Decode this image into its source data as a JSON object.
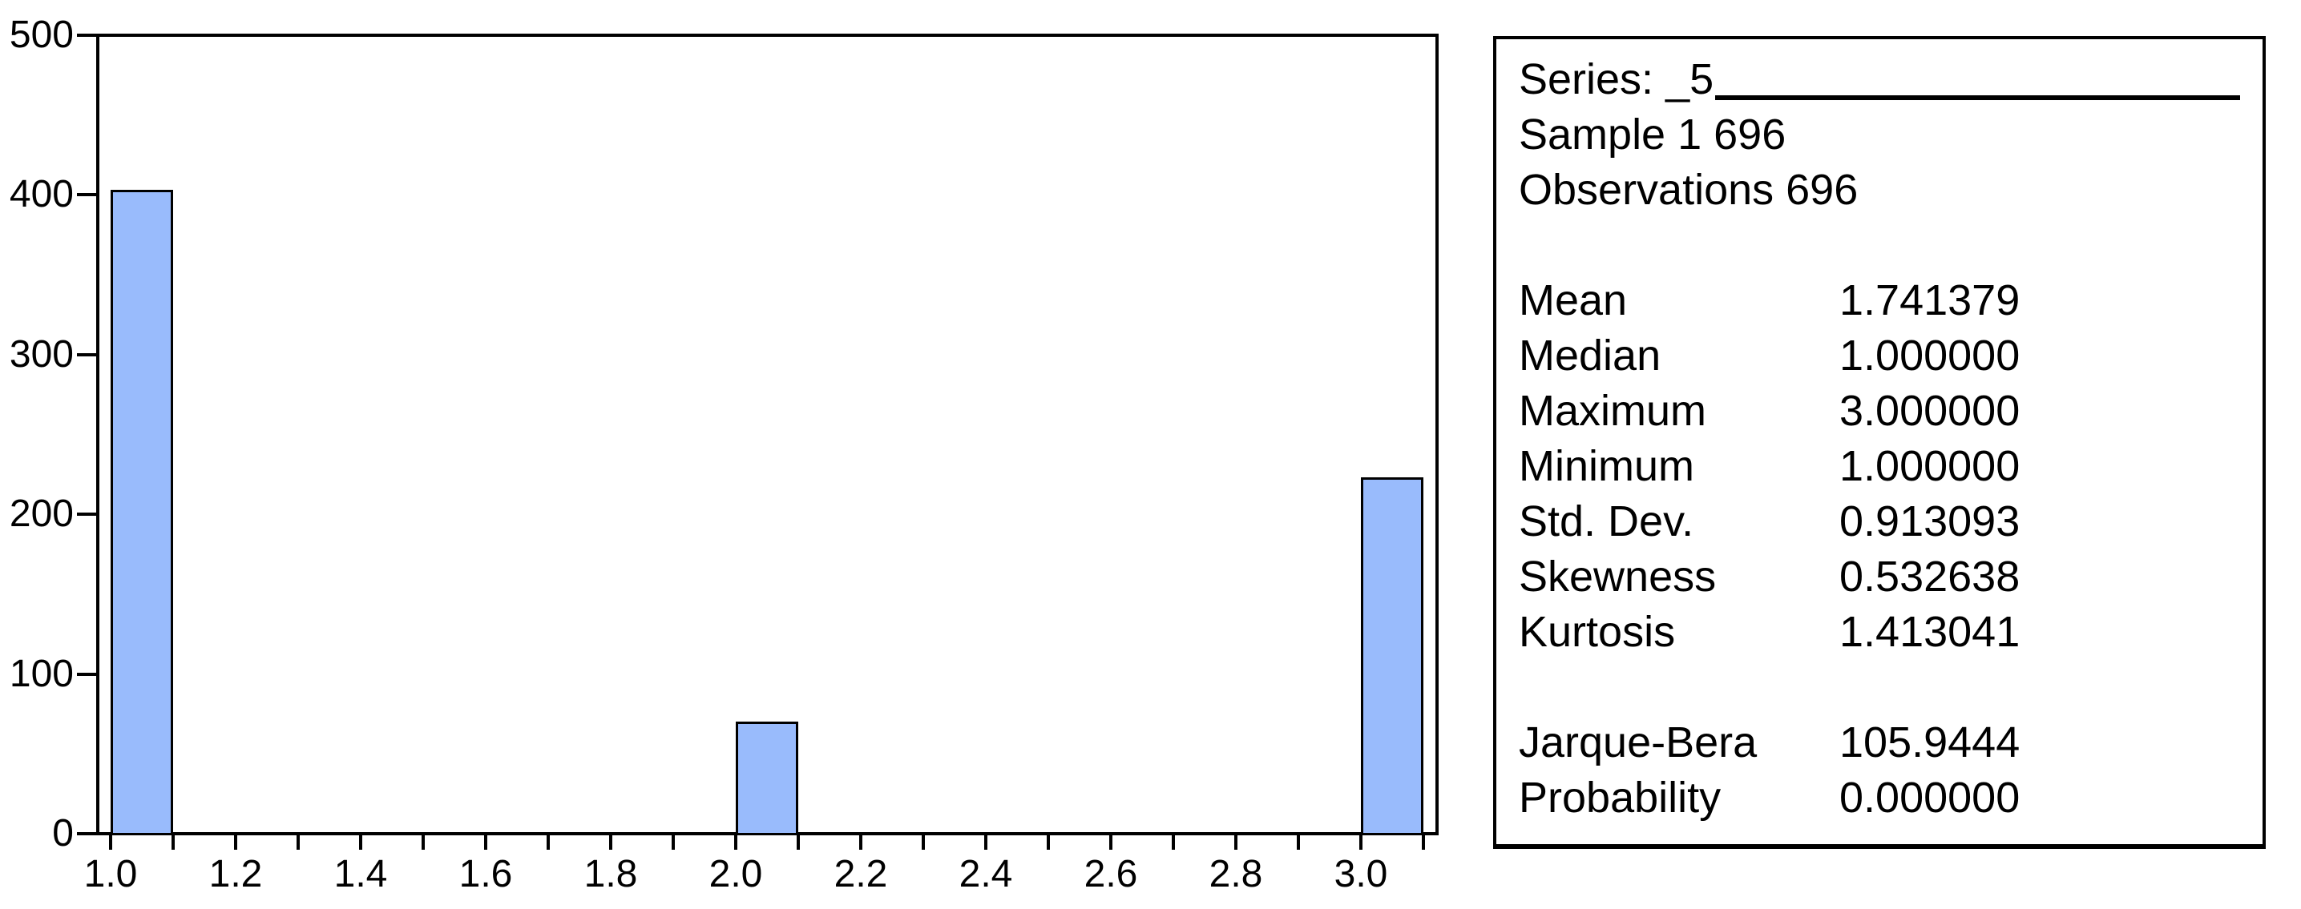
{
  "stats_panel": {
    "series_label": "Series: _5",
    "sample": "Sample 1 696",
    "observations": "Observations 696",
    "rows": [
      {
        "label": "Mean",
        "value": "1.741379"
      },
      {
        "label": "Median",
        "value": "1.000000"
      },
      {
        "label": "Maximum",
        "value": "3.000000"
      },
      {
        "label": "Minimum",
        "value": "1.000000"
      },
      {
        "label": "Std. Dev.",
        "value": "0.913093"
      },
      {
        "label": "Skewness",
        "value": "0.532638"
      },
      {
        "label": "Kurtosis",
        "value": "1.413041"
      }
    ],
    "test_rows": [
      {
        "label": "Jarque-Bera",
        "value": "105.9444"
      },
      {
        "label": "Probability",
        "value": "0.000000"
      }
    ]
  },
  "colors": {
    "bar_fill": "#99bbfc",
    "bar_border": "#000000",
    "frame": "#000000",
    "background": "#ffffff",
    "text": "#000000"
  },
  "chart_data": {
    "type": "bar",
    "subtype": "histogram",
    "title": "",
    "xlabel": "",
    "ylabel": "",
    "x": [
      1.0,
      2.0,
      3.0
    ],
    "values": [
      403,
      70,
      223
    ],
    "bin_width": 0.1,
    "xlim": [
      0.98,
      3.12
    ],
    "ylim": [
      0,
      500
    ],
    "y_ticks": [
      0,
      100,
      200,
      300,
      400,
      500
    ],
    "x_minor_ticks": [
      1.0,
      1.1,
      1.2,
      1.3,
      1.4,
      1.5,
      1.6,
      1.7,
      1.8,
      1.9,
      2.0,
      2.1,
      2.2,
      2.3,
      2.4,
      2.5,
      2.6,
      2.7,
      2.8,
      2.9,
      3.0,
      3.1
    ],
    "x_label_positions": [
      1.0,
      1.2,
      1.4,
      1.6,
      1.8,
      2.0,
      2.2,
      2.4,
      2.6,
      2.8,
      3.0
    ],
    "x_tick_labels": [
      "1.0",
      "1.2",
      "1.4",
      "1.6",
      "1.8",
      "2.0",
      "2.2",
      "2.4",
      "2.6",
      "2.8",
      "3.0"
    ],
    "grid": false,
    "legend": "none"
  }
}
